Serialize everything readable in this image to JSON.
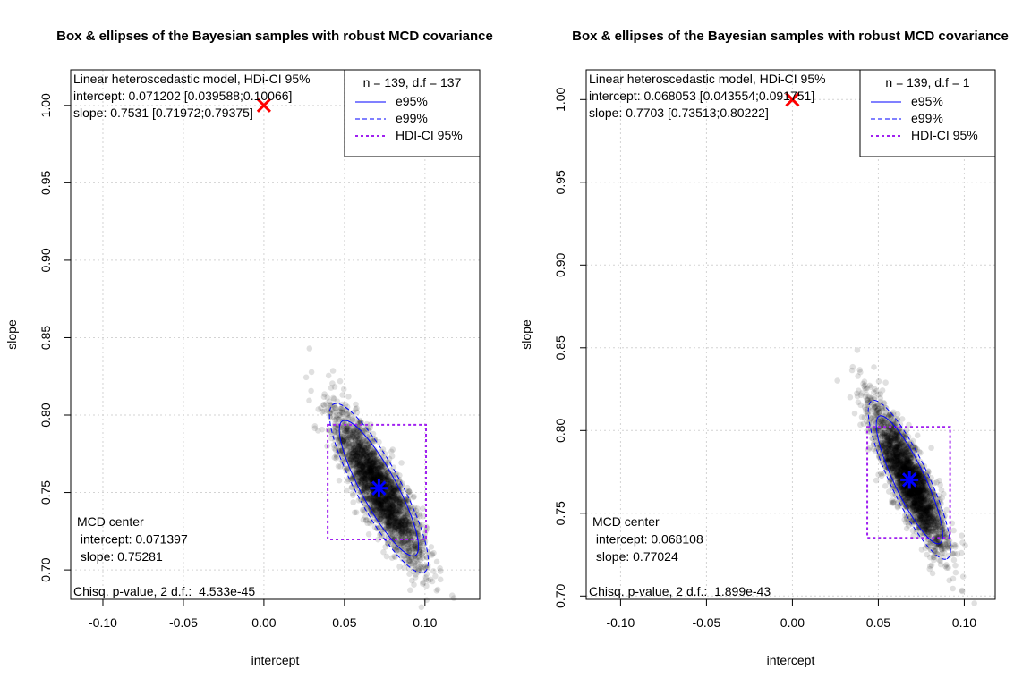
{
  "colors": {
    "ellipse": "#0000ff",
    "hdi_box": "#a020f0",
    "target_marker": "#ff0000",
    "center_marker": "#0000ff",
    "points": "#000000",
    "grid": "#d3d3d3"
  },
  "chart_data": [
    {
      "type": "scatter",
      "title": "Box & ellipses of the Bayesian samples with robust MCD covariance",
      "xlabel": "intercept",
      "ylabel": "slope",
      "xlim": [
        -0.12,
        0.134
      ],
      "ylim": [
        0.681,
        1.023
      ],
      "xticks": [
        -0.1,
        -0.05,
        0.0,
        0.05,
        0.1
      ],
      "xtick_labels": [
        "-0.10",
        "-0.05",
        "0.00",
        "0.05",
        "0.10"
      ],
      "yticks": [
        0.7,
        0.75,
        0.8,
        0.85,
        0.9,
        0.95,
        1.0
      ],
      "ytick_labels": [
        "0.70",
        "0.75",
        "0.80",
        "0.85",
        "0.90",
        "0.95",
        "1.00"
      ],
      "grid": true,
      "model_text": [
        "Linear heteroscedastic model, HDi-CI 95%",
        "intercept: 0.071202 [0.039588;0.10066]",
        "slope: 0.7531 [0.71972;0.79375]"
      ],
      "legend": {
        "position": "top-right",
        "title": "n = 139, d.f = 137",
        "entries": [
          "e95%",
          "e99%",
          "HDI-CI 95%"
        ]
      },
      "mcd_text": [
        "MCD center",
        " intercept: 0.071397",
        " slope: 0.75281"
      ],
      "chisq_text": "Chisq. p-value, 2 d.f.:  4.533e-45",
      "target_point": {
        "x": 0.0,
        "y": 1.0
      },
      "mcd_center": {
        "x": 0.071397,
        "y": 0.75281
      },
      "hdi_box": {
        "x": [
          0.039588,
          0.10066
        ],
        "y": [
          0.71972,
          0.79375
        ]
      },
      "ellipse_95": {
        "semi_major_x": 0.0225,
        "semi_major_y": -0.0435,
        "semi_minor_x": 0.0099,
        "semi_minor_y": 0.0051
      },
      "ellipse_99": {
        "semi_major_x": 0.0281,
        "semi_major_y": -0.0543,
        "semi_minor_x": 0.0123,
        "semi_minor_y": 0.0064
      },
      "sample_count": 2500,
      "sample_spread": {
        "major": 0.55,
        "minor": 0.55
      }
    },
    {
      "type": "scatter",
      "title": "Box & ellipses of the Bayesian samples with robust MCD covariance",
      "xlabel": "intercept",
      "ylabel": "slope",
      "xlim": [
        -0.12,
        0.118
      ],
      "ylim": [
        0.698,
        1.018
      ],
      "xticks": [
        -0.1,
        -0.05,
        0.0,
        0.05,
        0.1
      ],
      "xtick_labels": [
        "-0.10",
        "-0.05",
        "0.00",
        "0.05",
        "0.10"
      ],
      "yticks": [
        0.7,
        0.75,
        0.8,
        0.85,
        0.9,
        0.95,
        1.0
      ],
      "ytick_labels": [
        "0.70",
        "0.75",
        "0.80",
        "0.85",
        "0.90",
        "0.95",
        "1.00"
      ],
      "grid": true,
      "model_text": [
        "Linear heteroscedastic model, HDi-CI 95%",
        "intercept: 0.068053 [0.043554;0.091751]",
        "slope: 0.7703 [0.73513;0.80222]"
      ],
      "legend": {
        "position": "top-right",
        "title": "n = 139, d.f = 1",
        "entries": [
          "e95%",
          "e99%",
          "HDI-CI 95%"
        ]
      },
      "mcd_text": [
        "MCD center",
        " intercept: 0.068108",
        " slope: 0.77024"
      ],
      "chisq_text": "Chisq. p-value, 2 d.f.:  1.899e-43",
      "target_point": {
        "x": 0.0,
        "y": 1.0
      },
      "mcd_center": {
        "x": 0.068108,
        "y": 0.77024
      },
      "hdi_box": {
        "x": [
          0.043554,
          0.091751
        ],
        "y": [
          0.73513,
          0.80222
        ]
      },
      "ellipse_95": {
        "semi_major_x": 0.0175,
        "semi_major_y": -0.0385,
        "semi_minor_x": 0.0082,
        "semi_minor_y": 0.0037
      },
      "ellipse_99": {
        "semi_major_x": 0.0217,
        "semi_major_y": -0.0478,
        "semi_minor_x": 0.0102,
        "semi_minor_y": 0.0046
      },
      "sample_count": 2500,
      "sample_spread": {
        "major": 0.55,
        "minor": 0.55
      }
    }
  ]
}
